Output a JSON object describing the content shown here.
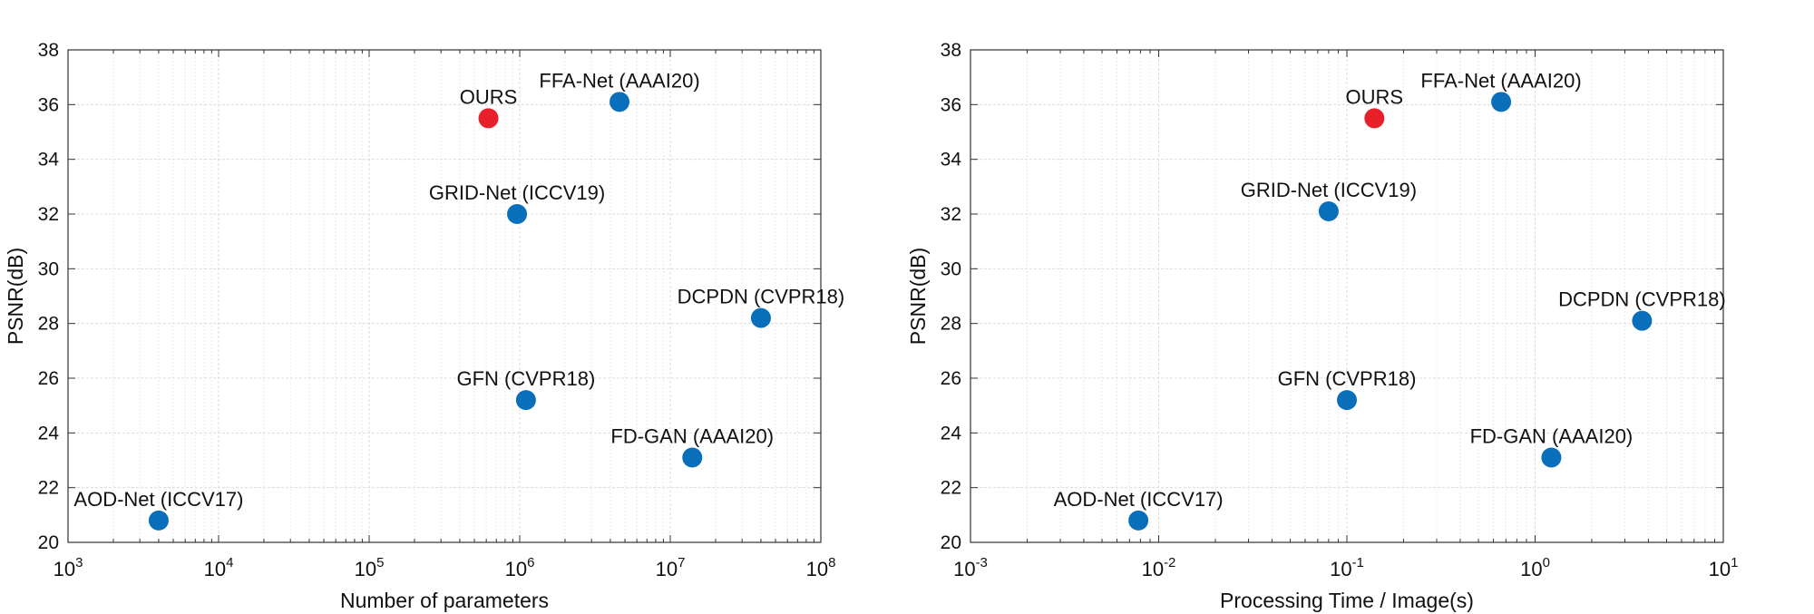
{
  "chart_data": [
    {
      "type": "scatter",
      "xlabel": "Number of parameters",
      "ylabel": "PSNR(dB)",
      "xscale": "log",
      "xlim": [
        1000,
        100000000
      ],
      "ylim": [
        20,
        38
      ],
      "yticks": [
        20,
        22,
        24,
        26,
        28,
        30,
        32,
        34,
        36,
        38
      ],
      "xticks": [
        {
          "base": "10",
          "exp": "3"
        },
        {
          "base": "10",
          "exp": "4"
        },
        {
          "base": "10",
          "exp": "5"
        },
        {
          "base": "10",
          "exp": "6"
        },
        {
          "base": "10",
          "exp": "7"
        },
        {
          "base": "10",
          "exp": "8"
        }
      ],
      "grid": true,
      "points": [
        {
          "label": "OURS",
          "x": 620000,
          "y": 35.5,
          "color": "#e8202a"
        },
        {
          "label": "FFA-Net (AAAI20)",
          "x": 4600000,
          "y": 36.1,
          "color": "#0a6fba"
        },
        {
          "label": "GRID-Net (ICCV19)",
          "x": 960000,
          "y": 32.0,
          "color": "#0a6fba"
        },
        {
          "label": "DCPDN (CVPR18)",
          "x": 40000000,
          "y": 28.2,
          "color": "#0a6fba"
        },
        {
          "label": "GFN (CVPR18)",
          "x": 1100000,
          "y": 25.2,
          "color": "#0a6fba"
        },
        {
          "label": "FD-GAN (AAAI20)",
          "x": 14000000,
          "y": 23.1,
          "color": "#0a6fba"
        },
        {
          "label": "AOD-Net (ICCV17)",
          "x": 4000,
          "y": 20.8,
          "color": "#0a6fba"
        }
      ]
    },
    {
      "type": "scatter",
      "xlabel": "Processing Time / Image(s)",
      "ylabel": "PSNR(dB)",
      "xscale": "log",
      "xlim": [
        0.001,
        10
      ],
      "ylim": [
        20,
        38
      ],
      "yticks": [
        20,
        22,
        24,
        26,
        28,
        30,
        32,
        34,
        36,
        38
      ],
      "xticks": [
        {
          "base": "10",
          "exp": "-3"
        },
        {
          "base": "10",
          "exp": "-2"
        },
        {
          "base": "10",
          "exp": "-1"
        },
        {
          "base": "10",
          "exp": "0"
        },
        {
          "base": "10",
          "exp": "1"
        }
      ],
      "grid": true,
      "points": [
        {
          "label": "OURS",
          "x": 0.14,
          "y": 35.5,
          "color": "#e8202a"
        },
        {
          "label": "FFA-Net (AAAI20)",
          "x": 0.66,
          "y": 36.1,
          "color": "#0a6fba"
        },
        {
          "label": "GRID-Net (ICCV19)",
          "x": 0.08,
          "y": 32.1,
          "color": "#0a6fba"
        },
        {
          "label": "DCPDN (CVPR18)",
          "x": 3.7,
          "y": 28.1,
          "color": "#0a6fba"
        },
        {
          "label": "GFN (CVPR18)",
          "x": 0.1,
          "y": 25.2,
          "color": "#0a6fba"
        },
        {
          "label": "FD-GAN (AAAI20)",
          "x": 1.22,
          "y": 23.1,
          "color": "#0a6fba"
        },
        {
          "label": "AOD-Net (ICCV17)",
          "x": 0.0078,
          "y": 20.8,
          "color": "#0a6fba"
        }
      ]
    }
  ]
}
